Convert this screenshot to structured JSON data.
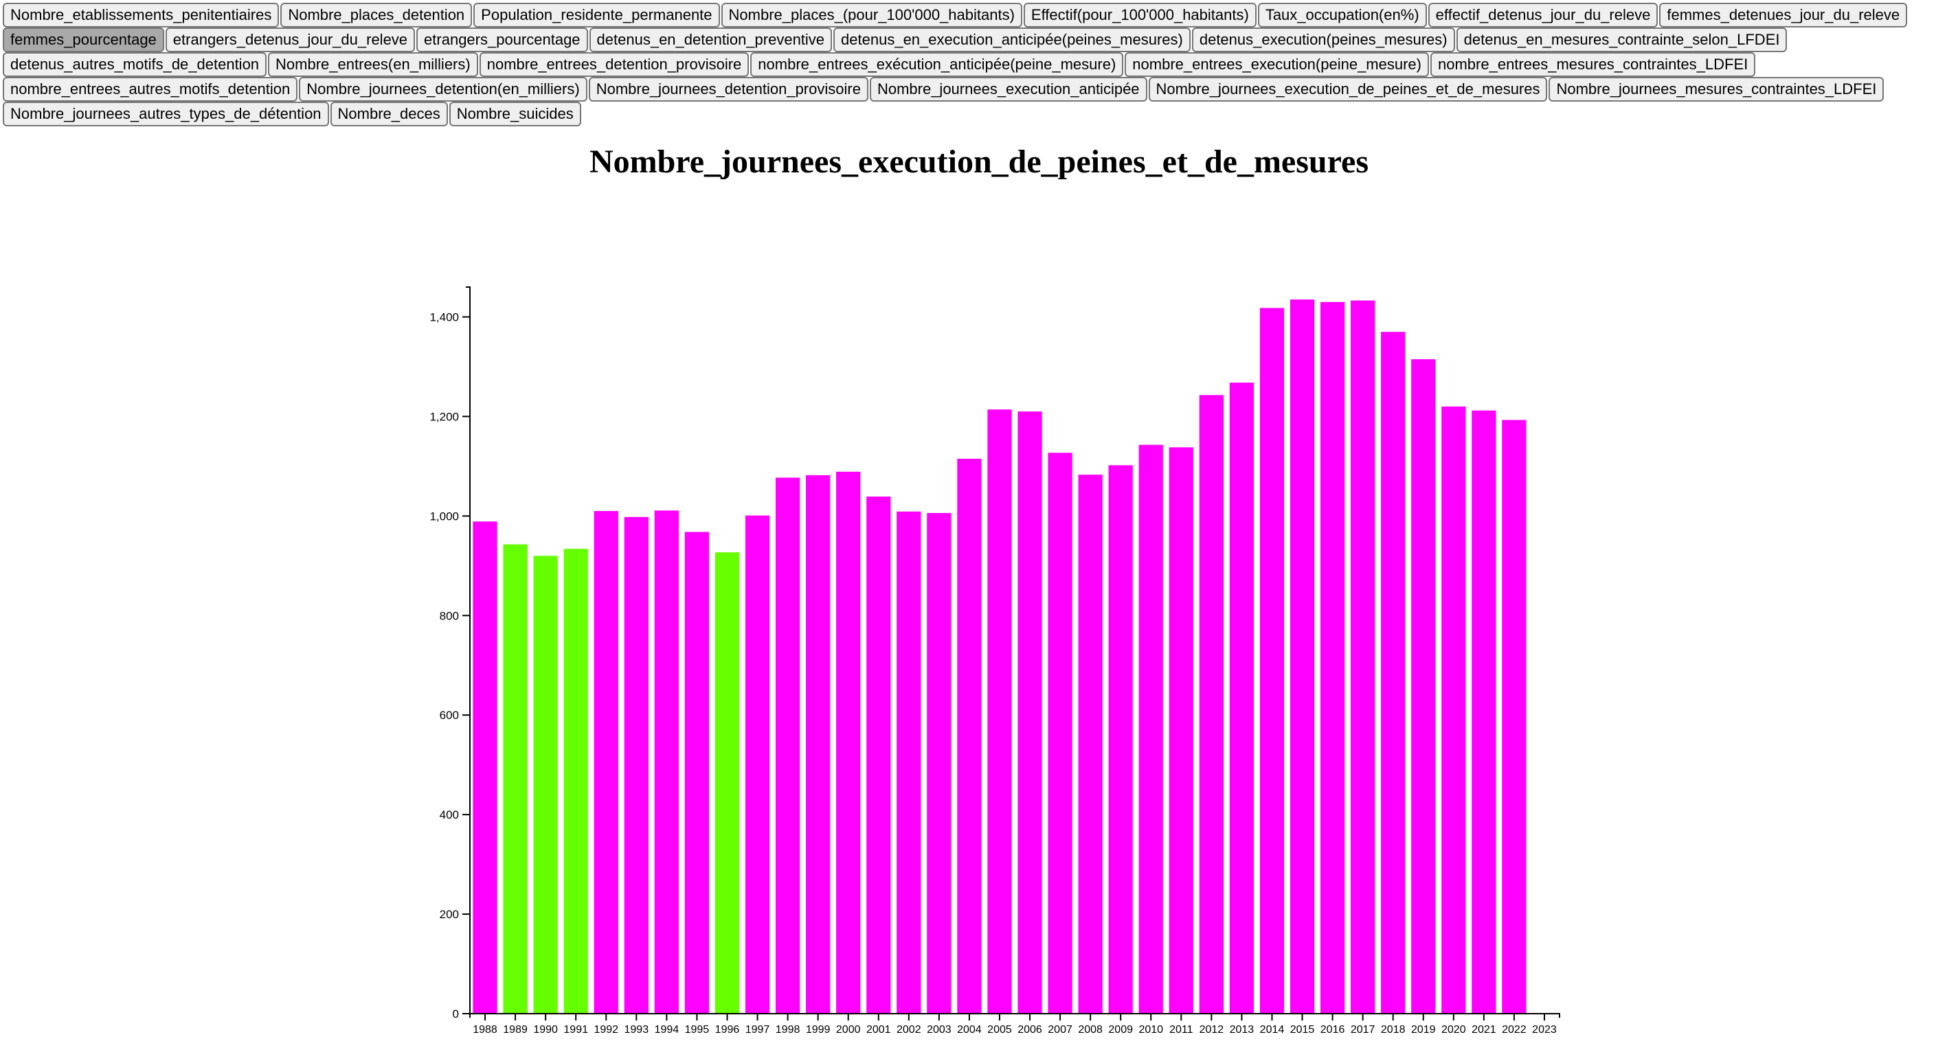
{
  "buttons": [
    "Nombre_etablissements_penitentiaires",
    "Nombre_places_detention",
    "Population_residente_permanente",
    "Nombre_places_(pour_100'000_habitants)",
    "Effectif(pour_100'000_habitants)",
    "Taux_occupation(en%)",
    "effectif_detenus_jour_du_releve",
    "femmes_detenues_jour_du_releve",
    "femmes_pourcentage",
    "etrangers_detenus_jour_du_releve",
    "etrangers_pourcentage",
    "detenus_en_detention_preventive",
    "detenus_en_execution_anticipée(peines_mesures)",
    "detenus_execution(peines_mesures)",
    "detenus_en_mesures_contrainte_selon_LFDEI",
    "detenus_autres_motifs_de_detention",
    "Nombre_entrees(en_milliers)",
    "nombre_entrees_detention_provisoire",
    "nombre_entrees_exécution_anticipée(peine_mesure)",
    "nombre_entrees_execution(peine_mesure)",
    "nombre_entrees_mesures_contraintes_LDFEI",
    "nombre_entrees_autres_motifs_detention",
    "Nombre_journees_detention(en_milliers)",
    "Nombre_journees_detention_provisoire",
    "Nombre_journees_execution_anticipée",
    "Nombre_journees_execution_de_peines_et_de_mesures",
    "Nombre_journees_mesures_contraintes_LDFEI",
    "Nombre_journees_autres_types_de_détention",
    "Nombre_deces",
    "Nombre_suicides"
  ],
  "active_button": "femmes_pourcentage",
  "colors": {
    "bar_default": "#ff00ff",
    "bar_highlight": "#66ff00",
    "axis": "#000000"
  },
  "chart_data": {
    "type": "bar",
    "title": "Nombre_journees_execution_de_peines_et_de_mesures",
    "xlabel": "",
    "ylabel": "",
    "categories": [
      "1988",
      "1989",
      "1990",
      "1991",
      "1992",
      "1993",
      "1994",
      "1995",
      "1996",
      "1997",
      "1998",
      "1999",
      "2000",
      "2001",
      "2002",
      "2003",
      "2004",
      "2005",
      "2006",
      "2007",
      "2008",
      "2009",
      "2010",
      "2011",
      "2012",
      "2013",
      "2014",
      "2015",
      "2016",
      "2017",
      "2018",
      "2019",
      "2020",
      "2021",
      "2022",
      "2023"
    ],
    "values": [
      989,
      943,
      920,
      934,
      1010,
      998,
      1011,
      968,
      927,
      1001,
      1077,
      1082,
      1089,
      1039,
      1009,
      1006,
      1115,
      1214,
      1210,
      1127,
      1083,
      1102,
      1143,
      1138,
      1243,
      1268,
      1418,
      1435,
      1430,
      1433,
      1370,
      1315,
      1220,
      1212,
      1193,
      null
    ],
    "highlighted_categories": [
      "1989",
      "1990",
      "1991",
      "1996"
    ],
    "ylim": [
      0,
      1460
    ],
    "yticks": [
      0,
      200,
      400,
      600,
      800,
      1000,
      1200,
      1400
    ],
    "ytick_labels": [
      "0",
      "200",
      "400",
      "600",
      "800",
      "1,000",
      "1,200",
      "1,400"
    ],
    "grid": false
  }
}
